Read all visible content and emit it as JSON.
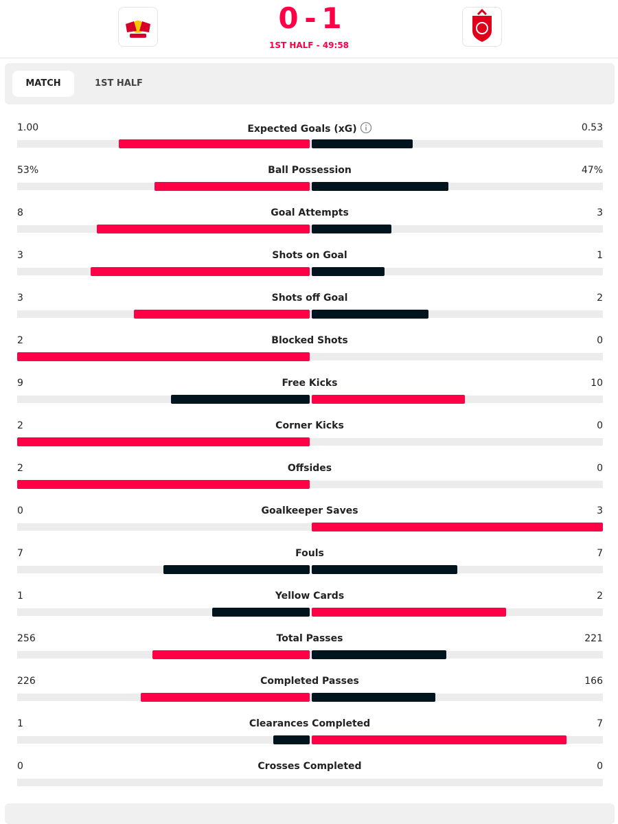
{
  "header": {
    "score": {
      "home": 0,
      "separator": "-",
      "away": 1
    },
    "status": "1ST HALF - 49:58"
  },
  "tabs": [
    "MATCH",
    "1ST HALF"
  ],
  "stats": [
    {
      "name": "Expected Goals (xG)",
      "values": [
        1.0,
        0.53
      ],
      "value_labels": [
        "1.00",
        "0.53"
      ]
    },
    {
      "name": "Ball Possession",
      "values": [
        53,
        47
      ],
      "value_labels": [
        "53%",
        "47%"
      ]
    },
    {
      "name": "Goal Attempts",
      "values": [
        8,
        3
      ]
    },
    {
      "name": "Shots on Goal",
      "values": [
        3,
        1
      ]
    },
    {
      "name": "Shots off Goal",
      "values": [
        3,
        2
      ]
    },
    {
      "name": "Blocked Shots",
      "values": [
        2,
        0
      ]
    },
    {
      "name": "Free Kicks",
      "values": [
        9,
        10
      ]
    },
    {
      "name": "Corner Kicks",
      "values": [
        2,
        0
      ]
    },
    {
      "name": "Offsides",
      "values": [
        2,
        0
      ]
    },
    {
      "name": "Goalkeeper Saves",
      "values": [
        0,
        3
      ]
    },
    {
      "name": "Fouls",
      "values": [
        7,
        7
      ]
    },
    {
      "name": "Yellow Cards",
      "values": [
        1,
        2
      ]
    },
    {
      "name": "Total Passes",
      "values": [
        256,
        221
      ]
    },
    {
      "name": "Completed Passes",
      "values": [
        226,
        166
      ]
    },
    {
      "name": "Clearances Completed",
      "values": [
        1,
        7
      ]
    },
    {
      "name": "Crosses Completed",
      "values": [
        0,
        0
      ]
    }
  ],
  "colors": {
    "leader": "#ff0046",
    "other": "#00141e",
    "track": "#ececec"
  }
}
